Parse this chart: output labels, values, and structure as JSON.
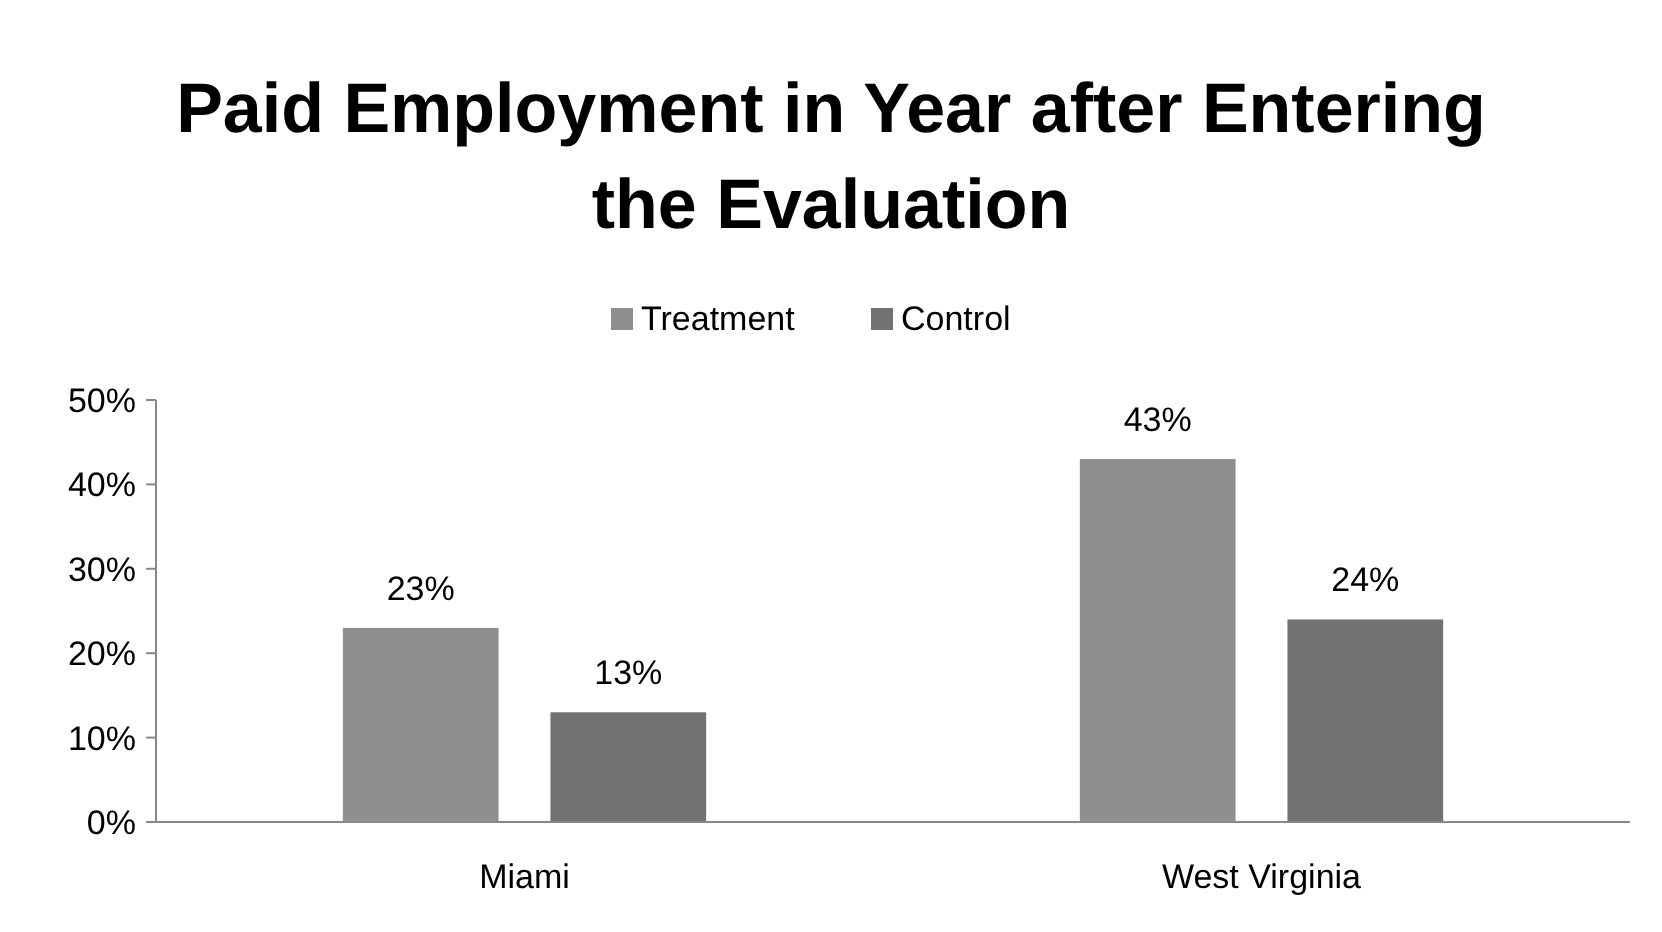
{
  "chart_data": {
    "type": "bar",
    "title": "Paid Employment in Year after Entering the Evaluation",
    "categories": [
      "Miami",
      "West Virginia"
    ],
    "series": [
      {
        "name": "Treatment",
        "color": "#8f8f8f",
        "values": [
          23,
          43
        ],
        "value_labels": [
          "23%",
          "43%"
        ]
      },
      {
        "name": "Control",
        "color": "#727272",
        "values": [
          13,
          24
        ],
        "value_labels": [
          "13%",
          "24%"
        ]
      }
    ],
    "ylim": [
      0,
      50
    ],
    "yticks": [
      {
        "value": 0,
        "label": "0%"
      },
      {
        "value": 10,
        "label": "10%"
      },
      {
        "value": 20,
        "label": "20%"
      },
      {
        "value": 30,
        "label": "30%"
      },
      {
        "value": 40,
        "label": "40%"
      },
      {
        "value": 50,
        "label": "50%"
      }
    ],
    "grid": false,
    "legend": "top"
  }
}
